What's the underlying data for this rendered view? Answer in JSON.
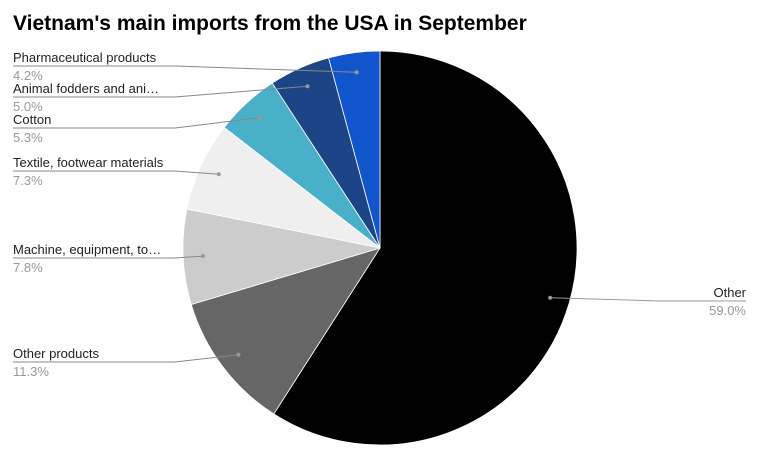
{
  "chart_data": {
    "type": "pie",
    "title": "Vietnam's main imports from the USA in September",
    "categories": [
      "Other",
      "Other products",
      "Machine, equipment, to…",
      "Textile, footwear materials",
      "Cotton",
      "Animal fodders and ani…",
      "Pharmaceutical products"
    ],
    "values": [
      59.0,
      11.3,
      7.8,
      7.3,
      5.3,
      5.0,
      4.2
    ],
    "value_labels": [
      "59.0%",
      "11.3%",
      "7.8%",
      "7.3%",
      "5.3%",
      "5.0%",
      "4.2%"
    ],
    "colors": [
      "#000000",
      "#666666",
      "#cccccc",
      "#efefef",
      "#4aafc8",
      "#1c4587",
      "#1155cc"
    ]
  }
}
